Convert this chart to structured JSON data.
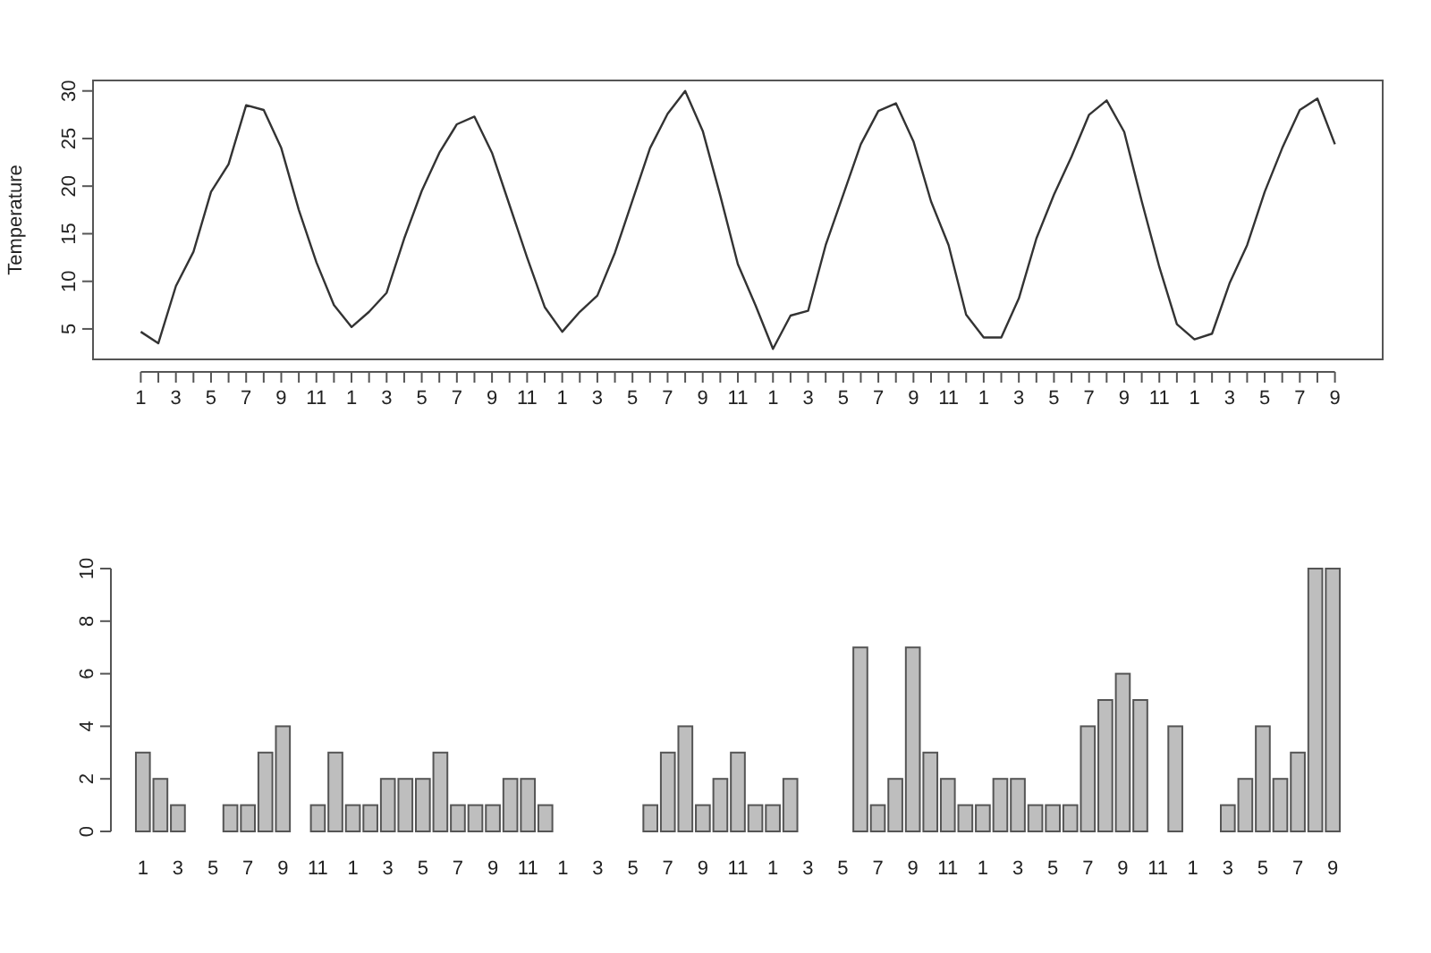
{
  "chart_data": [
    {
      "type": "line",
      "ylabel": "Temperature",
      "categories": [
        "1",
        null,
        "3",
        null,
        "5",
        null,
        "7",
        null,
        "9",
        null,
        "11",
        null,
        "1",
        null,
        "3",
        null,
        "5",
        null,
        "7",
        null,
        "9",
        null,
        "11",
        null,
        "1",
        null,
        "3",
        null,
        "5",
        null,
        "7",
        null,
        "9",
        null,
        "11",
        null,
        "1",
        null,
        "3",
        null,
        "5",
        null,
        "7",
        null,
        "9",
        null,
        "11",
        null,
        "1",
        null,
        "3",
        null,
        "5",
        null,
        "7",
        null,
        "9",
        null,
        "11",
        null,
        "1",
        null,
        "3",
        null,
        "5",
        null,
        "7",
        null,
        "9"
      ],
      "series": [
        {
          "color": "#333333",
          "values": [
            4.7,
            3.5,
            9.5,
            13.1,
            19.4,
            22.3,
            28.5,
            28.0,
            24.0,
            17.5,
            12.0,
            7.5,
            5.2,
            6.8,
            8.8,
            14.5,
            19.5,
            23.5,
            26.5,
            27.3,
            23.5,
            18.0,
            12.5,
            7.3,
            4.7,
            6.8,
            8.5,
            13.0,
            18.5,
            24.0,
            27.6,
            30.0,
            25.8,
            19.0,
            11.8,
            7.5,
            2.9,
            6.4,
            6.9,
            13.8,
            19.1,
            24.4,
            27.9,
            28.7,
            24.7,
            18.4,
            13.8,
            6.5,
            4.1,
            4.1,
            8.2,
            14.5,
            19.1,
            23.1,
            27.5,
            29.0,
            25.7,
            18.4,
            11.5,
            5.5,
            3.9,
            4.5,
            9.8,
            13.8,
            19.4,
            24.0,
            28.0,
            29.2,
            24.4
          ]
        }
      ],
      "ylim": [
        1.8,
        31.1
      ],
      "yticks": [
        5,
        10,
        15,
        20,
        25,
        30
      ],
      "grid": false,
      "marker": "none",
      "line_style": "solid"
    },
    {
      "type": "bar",
      "categories": [
        "1",
        null,
        "3",
        null,
        "5",
        null,
        "7",
        null,
        "9",
        null,
        "11",
        null,
        "1",
        null,
        "3",
        null,
        "5",
        null,
        "7",
        null,
        "9",
        null,
        "11",
        null,
        "1",
        null,
        "3",
        null,
        "5",
        null,
        "7",
        null,
        "9",
        null,
        "11",
        null,
        "1",
        null,
        "3",
        null,
        "5",
        null,
        "7",
        null,
        "9",
        null,
        "11",
        null,
        "1",
        null,
        "3",
        null,
        "5",
        null,
        "7",
        null,
        "9",
        null,
        "11",
        null,
        "1",
        null,
        "3",
        null,
        "5",
        null,
        "7",
        null,
        "9"
      ],
      "series": [
        {
          "color": "#bebebe",
          "values": [
            3,
            2,
            1,
            0,
            0,
            1,
            1,
            3,
            4,
            0,
            1,
            3,
            1,
            1,
            2,
            2,
            2,
            3,
            1,
            1,
            1,
            2,
            2,
            1,
            0,
            0,
            0,
            0,
            0,
            1,
            3,
            4,
            1,
            2,
            3,
            1,
            1,
            2,
            0,
            0,
            0,
            7,
            1,
            2,
            7,
            3,
            2,
            1,
            1,
            2,
            2,
            1,
            1,
            1,
            4,
            5,
            6,
            5,
            0,
            4,
            0,
            0,
            1,
            2,
            4,
            2,
            3,
            10,
            10
          ]
        }
      ],
      "ylim": [
        0,
        10
      ],
      "yticks": [
        0,
        2,
        4,
        6,
        8,
        10
      ],
      "grid": false
    }
  ]
}
